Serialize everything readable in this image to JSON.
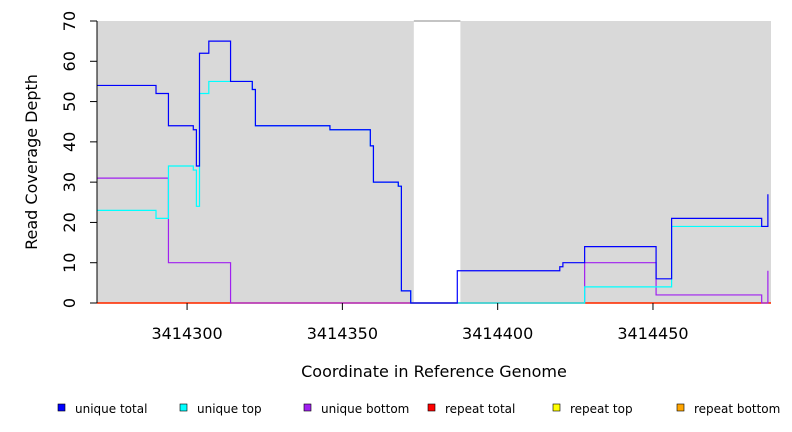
{
  "chart_data": {
    "type": "line",
    "title": "",
    "xlabel": "Coordinate in Reference Genome",
    "ylabel": "Read Coverage Depth",
    "xlim": [
      3414271,
      3414488
    ],
    "ylim": [
      0,
      70
    ],
    "xticks": [
      3414300,
      3414350,
      3414400,
      3414450
    ],
    "yticks": [
      0,
      10,
      20,
      30,
      40,
      50,
      60,
      70
    ],
    "background": "#d9d9d9",
    "gap_region": [
      3414373,
      3414388
    ],
    "legend_position": "bottom",
    "series": [
      {
        "name": "unique total",
        "color": "#0000ff",
        "points": [
          [
            3414271,
            54
          ],
          [
            3414290,
            54
          ],
          [
            3414290,
            52
          ],
          [
            3414294,
            52
          ],
          [
            3414294,
            44
          ],
          [
            3414302,
            44
          ],
          [
            3414302,
            43
          ],
          [
            3414303,
            43
          ],
          [
            3414303,
            34
          ],
          [
            3414304,
            34
          ],
          [
            3414304,
            62
          ],
          [
            3414307,
            62
          ],
          [
            3414307,
            65
          ],
          [
            3414314,
            65
          ],
          [
            3414314,
            55
          ],
          [
            3414321,
            55
          ],
          [
            3414321,
            53
          ],
          [
            3414322,
            53
          ],
          [
            3414322,
            44
          ],
          [
            3414346,
            44
          ],
          [
            3414346,
            43
          ],
          [
            3414359,
            43
          ],
          [
            3414359,
            39
          ],
          [
            3414360,
            39
          ],
          [
            3414360,
            30
          ],
          [
            3414368,
            30
          ],
          [
            3414368,
            29
          ],
          [
            3414369,
            29
          ],
          [
            3414369,
            3
          ],
          [
            3414372,
            3
          ],
          [
            3414372,
            0
          ],
          [
            3414387,
            0
          ],
          [
            3414387,
            8
          ],
          [
            3414420,
            8
          ],
          [
            3414420,
            9
          ],
          [
            3414421,
            9
          ],
          [
            3414421,
            10
          ],
          [
            3414428,
            10
          ],
          [
            3414428,
            14
          ],
          [
            3414451,
            14
          ],
          [
            3414451,
            6
          ],
          [
            3414456,
            6
          ],
          [
            3414456,
            21
          ],
          [
            3414485,
            21
          ],
          [
            3414485,
            19
          ],
          [
            3414487,
            19
          ],
          [
            3414487,
            27
          ]
        ]
      },
      {
        "name": "unique top",
        "color": "#00ffff",
        "points": [
          [
            3414271,
            23
          ],
          [
            3414290,
            23
          ],
          [
            3414290,
            21
          ],
          [
            3414294,
            21
          ],
          [
            3414294,
            34
          ],
          [
            3414302,
            34
          ],
          [
            3414302,
            33
          ],
          [
            3414303,
            33
          ],
          [
            3414303,
            24
          ],
          [
            3414304,
            24
          ],
          [
            3414304,
            52
          ],
          [
            3414307,
            52
          ],
          [
            3414307,
            55
          ],
          [
            3414321,
            55
          ],
          [
            3414321,
            53
          ],
          [
            3414322,
            53
          ],
          [
            3414322,
            44
          ],
          [
            3414346,
            44
          ],
          [
            3414346,
            43
          ],
          [
            3414359,
            43
          ],
          [
            3414359,
            39
          ],
          [
            3414360,
            39
          ],
          [
            3414360,
            30
          ],
          [
            3414368,
            30
          ],
          [
            3414368,
            29
          ],
          [
            3414369,
            29
          ],
          [
            3414369,
            3
          ],
          [
            3414372,
            3
          ],
          [
            3414372,
            0
          ],
          [
            3414428,
            0
          ],
          [
            3414428,
            4
          ],
          [
            3414451,
            4
          ],
          [
            3414451,
            4
          ],
          [
            3414456,
            4
          ],
          [
            3414456,
            19
          ],
          [
            3414487,
            19
          ]
        ]
      },
      {
        "name": "unique bottom",
        "color": "#a020f0",
        "points": [
          [
            3414271,
            31
          ],
          [
            3414294,
            31
          ],
          [
            3414294,
            10
          ],
          [
            3414314,
            10
          ],
          [
            3414314,
            0
          ],
          [
            3414428,
            0
          ],
          [
            3414428,
            10
          ],
          [
            3414451,
            10
          ],
          [
            3414451,
            2
          ],
          [
            3414485,
            2
          ],
          [
            3414485,
            0
          ],
          [
            3414487,
            0
          ],
          [
            3414487,
            8
          ]
        ]
      },
      {
        "name": "repeat total",
        "color": "#ff0000",
        "points": [
          [
            3414271,
            0
          ],
          [
            3414488,
            0
          ]
        ]
      },
      {
        "name": "repeat top",
        "color": "#ffff00",
        "points": [
          [
            3414271,
            0
          ],
          [
            3414488,
            0
          ]
        ]
      },
      {
        "name": "repeat bottom",
        "color": "#ffa500",
        "points": [
          [
            3414271,
            0
          ],
          [
            3414488,
            0
          ]
        ]
      }
    ]
  }
}
